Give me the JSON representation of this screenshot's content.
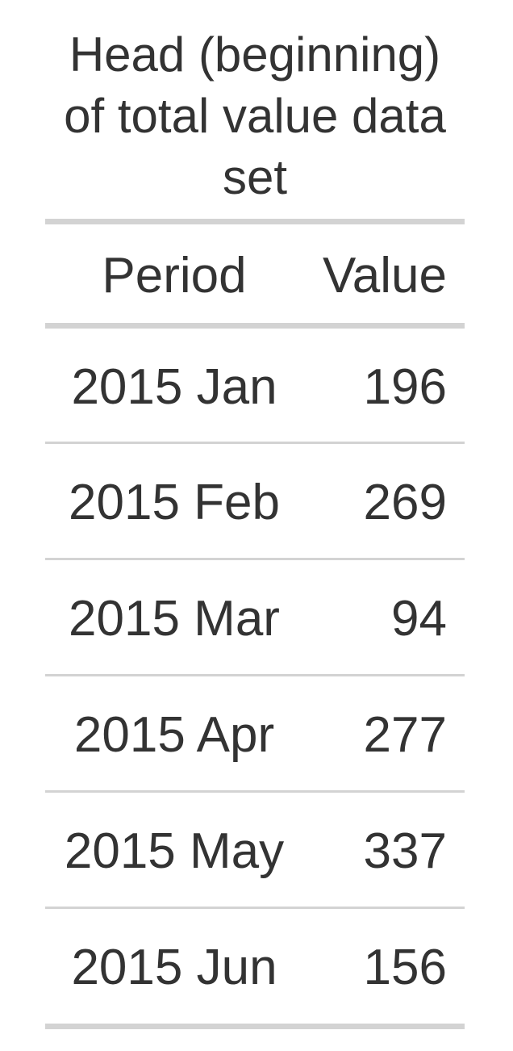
{
  "table": {
    "title": "Head (beginning) of total value data set",
    "columns": {
      "period": "Period",
      "value": "Value"
    },
    "rows": [
      {
        "period": "2015 Jan",
        "value": "196"
      },
      {
        "period": "2015 Feb",
        "value": "269"
      },
      {
        "period": "2015 Mar",
        "value": "94"
      },
      {
        "period": "2015 Apr",
        "value": "277"
      },
      {
        "period": "2015 May",
        "value": "337"
      },
      {
        "period": "2015 Jun",
        "value": "156"
      }
    ]
  }
}
